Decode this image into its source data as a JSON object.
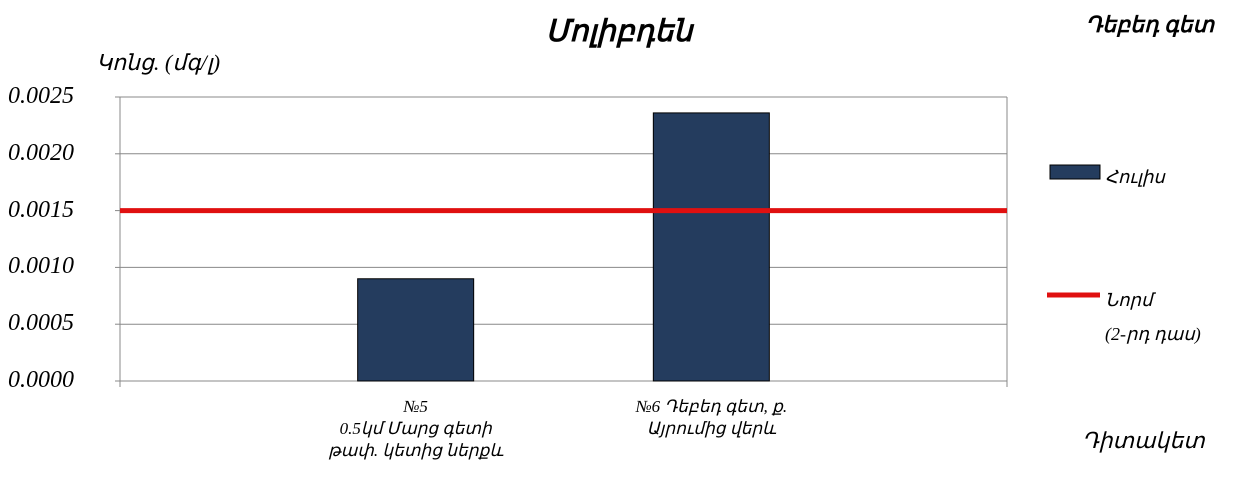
{
  "chart_data": {
    "type": "bar",
    "title": "Մոլիբդեն",
    "subtitle": "Դեբեդ գետ",
    "y_label": "Կոնց. (մգ/լ)",
    "x_label": "Դիտակետ",
    "categories": [
      "№5\n0.5կմ Մարց գետի\nթափ. կետից ներքև",
      "№6 Դեբեդ  գետ, ք.\nԱյրումից  վերև"
    ],
    "series": [
      {
        "name": "Հուլիս",
        "type": "bar",
        "color": "#243c5e",
        "values": [
          0.0009,
          0.00236
        ]
      },
      {
        "name": "Նորմ\n(2-րդ դաս)",
        "type": "line",
        "color": "#e01010",
        "values": [
          0.0015,
          0.0015
        ]
      }
    ],
    "ylim": [
      0,
      0.0025
    ],
    "yticks": [
      {
        "value": 0,
        "label": "0.0000"
      },
      0.0005,
      {
        "value": 0.001,
        "label": "0.0010"
      },
      0.0015,
      {
        "value": 0.002,
        "label": "0.0020"
      },
      0.0025
    ],
    "grid": true,
    "legend": "right"
  }
}
